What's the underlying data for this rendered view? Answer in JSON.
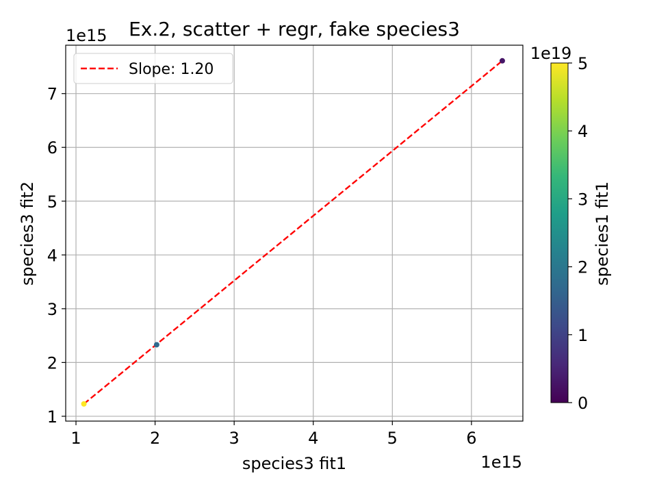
{
  "chart_data": {
    "type": "scatter",
    "title": "Ex.2, scatter + regr, fake species3",
    "xlabel": "species3 fit1",
    "ylabel": "species3 fit2",
    "x_offset_text": "1e15",
    "y_offset_text": "1e15",
    "xlim": [
      0.87,
      6.65
    ],
    "ylim": [
      0.91,
      7.9
    ],
    "x_ticks": [
      1,
      2,
      3,
      4,
      5,
      6
    ],
    "y_ticks": [
      1,
      2,
      3,
      4,
      5,
      6,
      7
    ],
    "grid": true,
    "points": [
      {
        "x": 1.1,
        "y": 1.23,
        "c": 5.0
      },
      {
        "x": 2.02,
        "y": 2.33,
        "c": 1.7
      },
      {
        "x": 6.39,
        "y": 7.61,
        "c": 0.3
      }
    ],
    "regression": {
      "x": [
        1.1,
        6.39
      ],
      "y": [
        1.23,
        7.61
      ],
      "color": "#ff0000",
      "style": "dashed"
    },
    "legend": {
      "label": "Slope: 1.20",
      "position": "top-left"
    },
    "colorbar": {
      "label": "species1 fit1",
      "offset_text": "1e19",
      "range": [
        0,
        5
      ],
      "ticks": [
        0,
        1,
        2,
        3,
        4,
        5
      ],
      "colormap": "viridis",
      "stops": [
        "#440154",
        "#482878",
        "#3e4989",
        "#31688e",
        "#26828e",
        "#1f9e89",
        "#35b779",
        "#6ece58",
        "#b5de2b",
        "#fde725"
      ]
    }
  }
}
